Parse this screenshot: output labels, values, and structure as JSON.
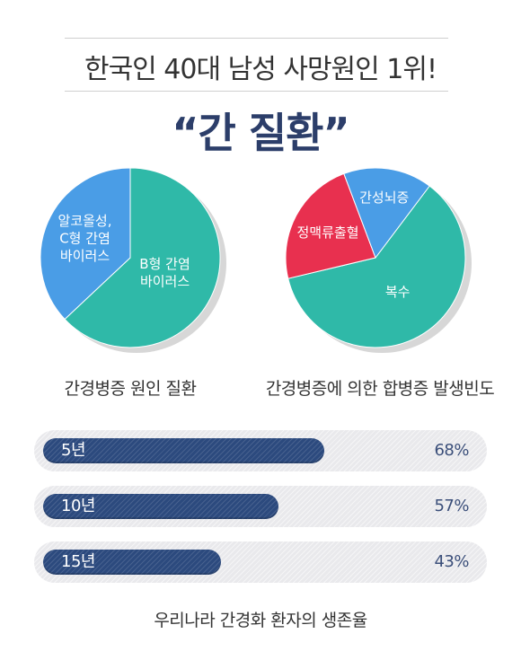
{
  "header": {
    "headline": "한국인 40대 남성 사망원인 1위!",
    "title": "“간 질환”"
  },
  "chart_data": [
    {
      "type": "pie",
      "caption": "간경병증 원인 질환",
      "slices": [
        {
          "label": "B형 간염\n바이러스",
          "value": 63,
          "color": "#2fb9a8"
        },
        {
          "label": "알코올성,\nC형 간염\n바이러스",
          "value": 37,
          "color": "#4a9de6"
        }
      ]
    },
    {
      "type": "pie",
      "caption": "간경병증에 의한 합병증 발생빈도",
      "slices": [
        {
          "label": "복수",
          "value": 61,
          "color": "#2fb9a8"
        },
        {
          "label": "정맥류출혈",
          "value": 23,
          "color": "#e8304f"
        },
        {
          "label": "간성뇌증",
          "value": 16,
          "color": "#4a9de6"
        }
      ]
    },
    {
      "type": "bar",
      "orientation": "horizontal",
      "caption": "우리나라 간경화 환자의 생존율",
      "categories": [
        "5년",
        "10년",
        "15년"
      ],
      "values": [
        68,
        57,
        43
      ],
      "value_labels": [
        "68%",
        "57%",
        "43%"
      ],
      "xlim": [
        0,
        100
      ],
      "color": "#2c4a7e"
    }
  ]
}
